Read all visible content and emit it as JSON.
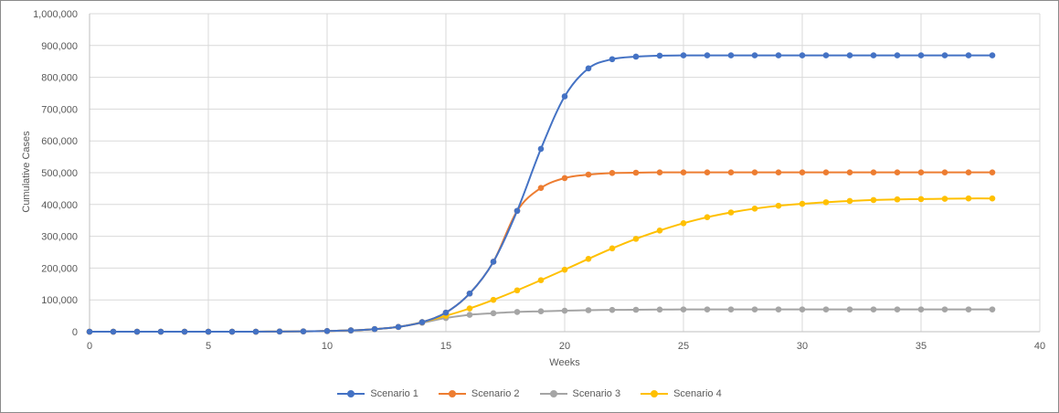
{
  "chart_data": {
    "type": "line",
    "title": "",
    "xlabel": "Weeks",
    "ylabel": "Cumulative Cases",
    "xlim": [
      0,
      40
    ],
    "ylim": [
      0,
      1000000
    ],
    "xticks": [
      0,
      5,
      10,
      15,
      20,
      25,
      30,
      35,
      40
    ],
    "xtick_labels": [
      "0",
      "5",
      "10",
      "15",
      "20",
      "25",
      "30",
      "35",
      "40"
    ],
    "yticks": [
      0,
      100000,
      200000,
      300000,
      400000,
      500000,
      600000,
      700000,
      800000,
      900000,
      1000000
    ],
    "ytick_labels": [
      "0",
      "100,000",
      "200,000",
      "300,000",
      "400,000",
      "500,000",
      "600,000",
      "700,000",
      "800,000",
      "900,000",
      "1,000,000"
    ],
    "grid": true,
    "legend_position": "bottom",
    "x": [
      0,
      1,
      2,
      3,
      4,
      5,
      6,
      7,
      8,
      9,
      10,
      11,
      12,
      13,
      14,
      15,
      16,
      17,
      18,
      19,
      20,
      21,
      22,
      23,
      24,
      25,
      26,
      27,
      28,
      29,
      30,
      31,
      32,
      33,
      34,
      35,
      36,
      37,
      38
    ],
    "series": [
      {
        "name": "Scenario 1",
        "color": "#4472C4",
        "values": [
          0,
          0,
          0,
          0,
          0,
          0,
          0,
          0,
          500,
          1000,
          2000,
          4000,
          8000,
          15000,
          30000,
          60000,
          120000,
          220000,
          380000,
          575000,
          740000,
          828000,
          857000,
          865000,
          868000,
          869000,
          869000,
          869000,
          869000,
          869000,
          869000,
          869000,
          869000,
          869000,
          869000,
          869000,
          869000,
          869000,
          869000
        ]
      },
      {
        "name": "Scenario 2",
        "color": "#ED7D31",
        "values": [
          0,
          0,
          0,
          0,
          0,
          0,
          0,
          0,
          500,
          1000,
          2000,
          4000,
          8000,
          15000,
          30000,
          60000,
          120000,
          220000,
          380000,
          452000,
          483000,
          494000,
          499000,
          500000,
          501000,
          501000,
          501000,
          501000,
          501000,
          501000,
          501000,
          501000,
          501000,
          501000,
          501000,
          501000,
          501000,
          501000,
          501000
        ]
      },
      {
        "name": "Scenario 3",
        "color": "#A5A5A5",
        "values": [
          0,
          0,
          0,
          0,
          0,
          0,
          0,
          0,
          500,
          1000,
          2000,
          4000,
          8000,
          15000,
          28000,
          43000,
          53000,
          58000,
          62000,
          64000,
          66000,
          67500,
          68500,
          69000,
          69500,
          70000,
          70000,
          70000,
          70000,
          70000,
          70000,
          70000,
          70000,
          70000,
          70000,
          70000,
          70000,
          70000,
          70000
        ]
      },
      {
        "name": "Scenario 4",
        "color": "#FFC000",
        "values": [
          0,
          0,
          0,
          0,
          0,
          0,
          0,
          0,
          500,
          1000,
          2000,
          4000,
          8000,
          15000,
          30000,
          50000,
          73000,
          100000,
          130000,
          162000,
          195000,
          229000,
          262000,
          292000,
          318000,
          341000,
          360000,
          375000,
          387000,
          396000,
          402000,
          407000,
          411000,
          414000,
          416000,
          417000,
          418000,
          419000,
          419000
        ]
      }
    ]
  }
}
